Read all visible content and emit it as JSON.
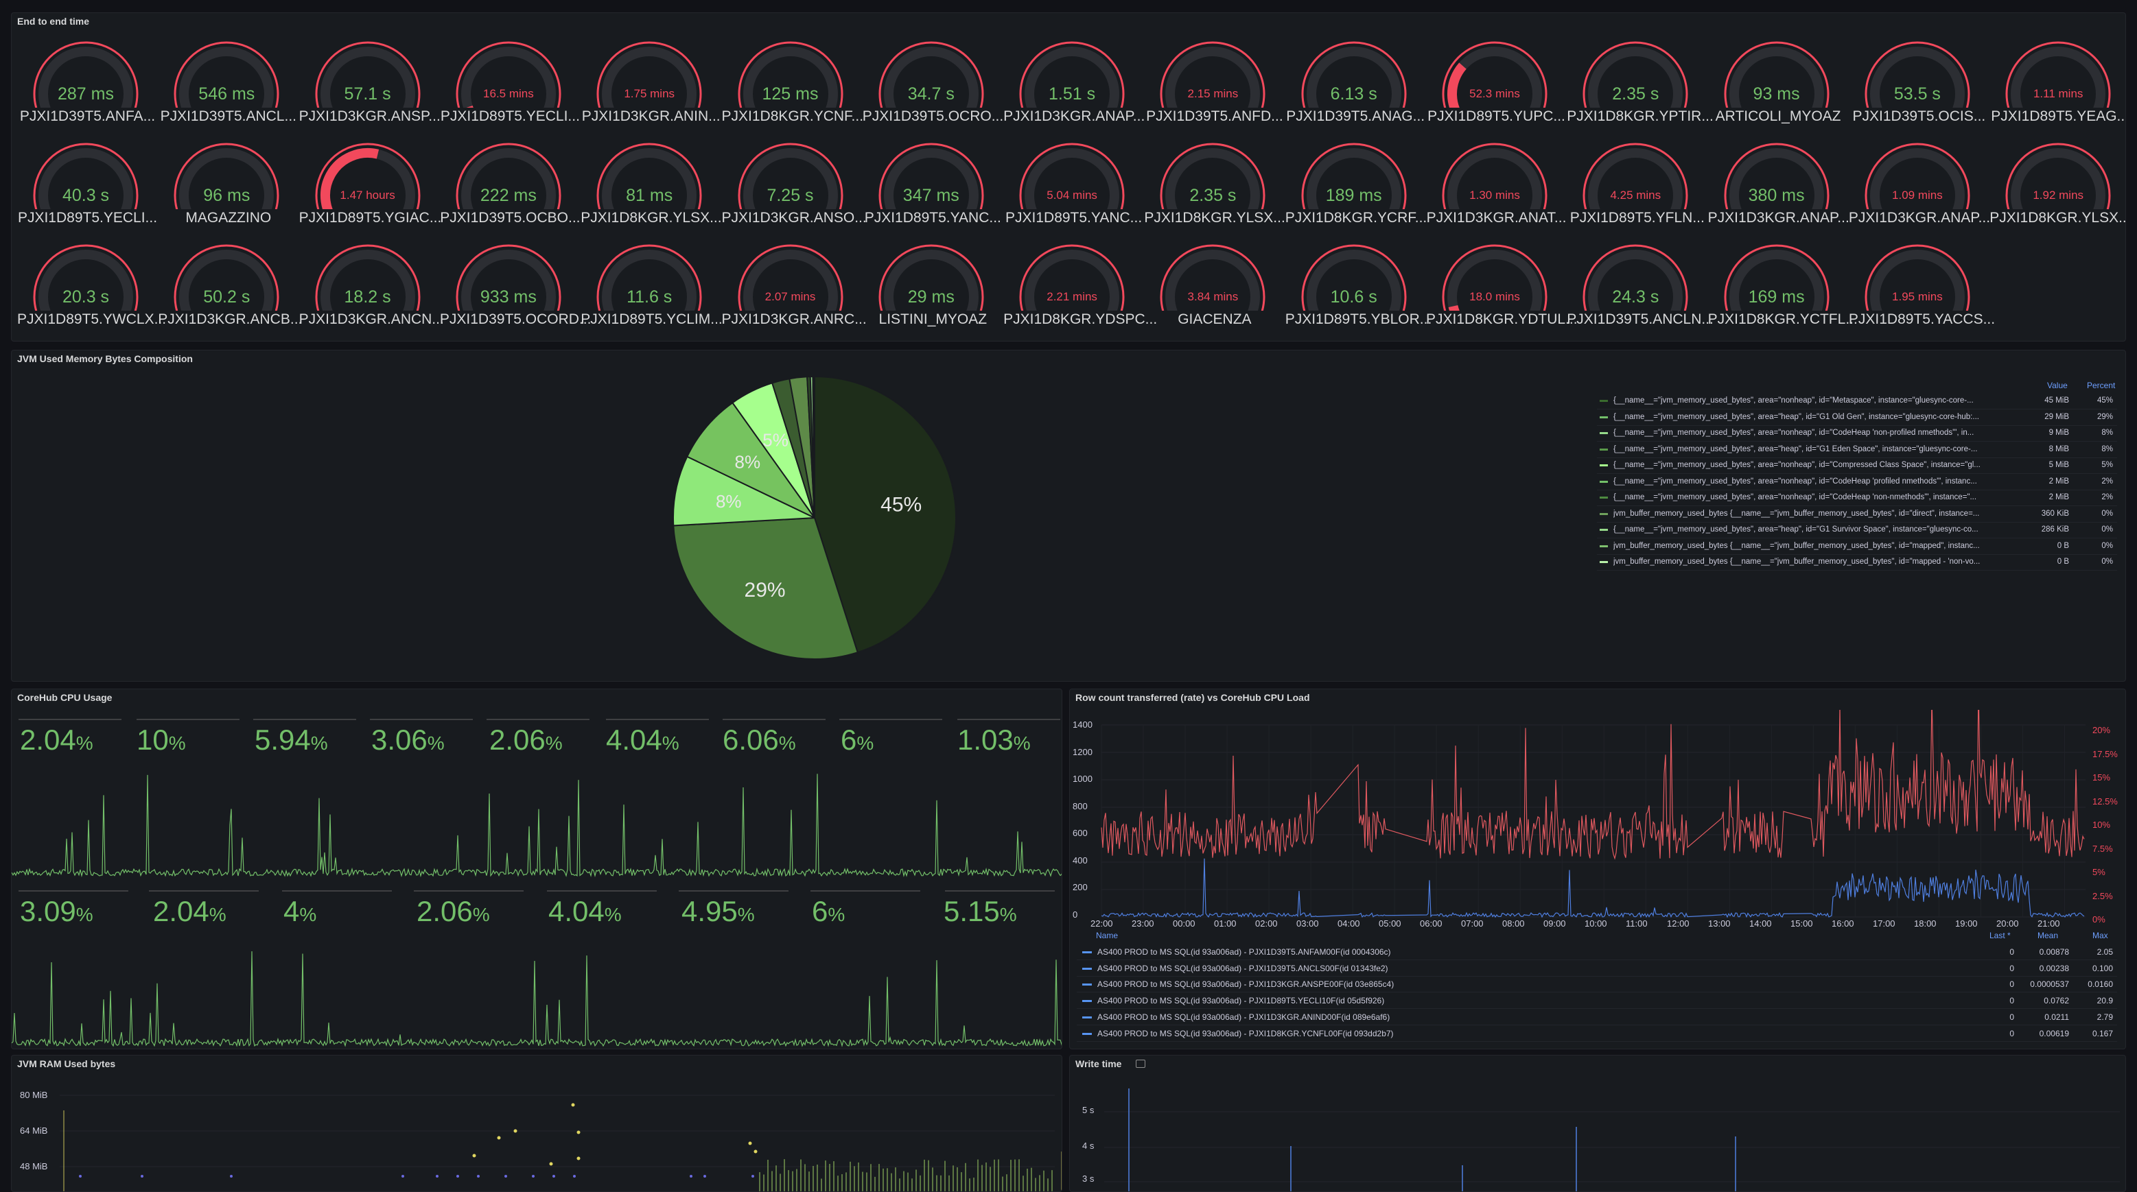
{
  "panels": {
    "e2e": {
      "title": "End to end time"
    },
    "jvm_comp": {
      "title": "JVM Used Memory Bytes Composition"
    },
    "cpu": {
      "title": "CoreHub CPU Usage"
    },
    "rowcount": {
      "title": "Row count transferred (rate) vs CoreHub CPU Load"
    },
    "ram": {
      "title": "JVM RAM Used bytes"
    },
    "write": {
      "title": "Write time"
    }
  },
  "gauges": [
    {
      "value": "287 ms",
      "name": "PJXI1D39T5.ANFA...",
      "level": "low"
    },
    {
      "value": "546 ms",
      "name": "PJXI1D39T5.ANCL...",
      "level": "low"
    },
    {
      "value": "57.1 s",
      "name": "PJXI1D3KGR.ANSP...",
      "level": "low"
    },
    {
      "value": "16.5 mins",
      "name": "PJXI1D89T5.YECLI...",
      "level": "high",
      "fill": 0.1
    },
    {
      "value": "1.75 mins",
      "name": "PJXI1D3KGR.ANIN...",
      "level": "high",
      "fill": 0.02
    },
    {
      "value": "125 ms",
      "name": "PJXI1D8KGR.YCNF...",
      "level": "low"
    },
    {
      "value": "34.7 s",
      "name": "PJXI1D39T5.OCRO...",
      "level": "low"
    },
    {
      "value": "1.51 s",
      "name": "PJXI1D3KGR.ANAP...",
      "level": "low"
    },
    {
      "value": "2.15 mins",
      "name": "PJXI1D39T5.ANFD...",
      "level": "high",
      "fill": 0.03
    },
    {
      "value": "6.13 s",
      "name": "PJXI1D39T5.ANAG...",
      "level": "low"
    },
    {
      "value": "52.3 mins",
      "name": "PJXI1D89T5.YUPC...",
      "level": "high",
      "fill": 0.32
    },
    {
      "value": "2.35 s",
      "name": "PJXI1D8KGR.YPTIR...",
      "level": "low"
    },
    {
      "value": "93 ms",
      "name": "ARTICOLI_MYOAZ",
      "level": "low"
    },
    {
      "value": "53.5 s",
      "name": "PJXI1D39T5.OCIS...",
      "level": "low"
    },
    {
      "value": "1.11 mins",
      "name": "PJXI1D89T5.YEAG...",
      "level": "high",
      "fill": 0.01
    },
    {
      "value": "40.3 s",
      "name": "PJXI1D89T5.YECLI...",
      "level": "low"
    },
    {
      "value": "96 ms",
      "name": "MAGAZZINO",
      "level": "low"
    },
    {
      "value": "1.47 hours",
      "name": "PJXI1D89T5.YGIAC...",
      "level": "high",
      "fill": 0.55
    },
    {
      "value": "222 ms",
      "name": "PJXI1D39T5.OCBO...",
      "level": "low"
    },
    {
      "value": "81 ms",
      "name": "PJXI1D8KGR.YLSX...",
      "level": "low"
    },
    {
      "value": "7.25 s",
      "name": "PJXI1D3KGR.ANSO...",
      "level": "low"
    },
    {
      "value": "347 ms",
      "name": "PJXI1D89T5.YANC...",
      "level": "low"
    },
    {
      "value": "5.04 mins",
      "name": "PJXI1D89T5.YANC...",
      "level": "high",
      "fill": 0.06
    },
    {
      "value": "2.35 s",
      "name": "PJXI1D8KGR.YLSX...",
      "level": "low"
    },
    {
      "value": "189 ms",
      "name": "PJXI1D8KGR.YCRF...",
      "level": "low"
    },
    {
      "value": "1.30 mins",
      "name": "PJXI1D3KGR.ANAT...",
      "level": "high",
      "fill": 0.01
    },
    {
      "value": "4.25 mins",
      "name": "PJXI1D89T5.YFLN...",
      "level": "high",
      "fill": 0.05
    },
    {
      "value": "380 ms",
      "name": "PJXI1D3KGR.ANAP...",
      "level": "low"
    },
    {
      "value": "1.09 mins",
      "name": "PJXI1D3KGR.ANAP...",
      "level": "high",
      "fill": 0.01
    },
    {
      "value": "1.92 mins",
      "name": "PJXI1D8KGR.YLSX...",
      "level": "high",
      "fill": 0.02
    },
    {
      "value": "20.3 s",
      "name": "PJXI1D89T5.YWCLX...",
      "level": "low"
    },
    {
      "value": "50.2 s",
      "name": "PJXI1D3KGR.ANCB...",
      "level": "low"
    },
    {
      "value": "18.2 s",
      "name": "PJXI1D3KGR.ANCN...",
      "level": "low"
    },
    {
      "value": "933 ms",
      "name": "PJXI1D39T5.OCORD...",
      "level": "low"
    },
    {
      "value": "11.6 s",
      "name": "PJXI1D89T5.YCLIM...",
      "level": "low"
    },
    {
      "value": "2.07 mins",
      "name": "PJXI1D3KGR.ANRC...",
      "level": "high",
      "fill": 0.03
    },
    {
      "value": "29 ms",
      "name": "LISTINI_MYOAZ",
      "level": "low"
    },
    {
      "value": "2.21 mins",
      "name": "PJXI1D8KGR.YDSPC...",
      "level": "high",
      "fill": 0.03
    },
    {
      "value": "3.84 mins",
      "name": "GIACENZA",
      "level": "high",
      "fill": 0.05
    },
    {
      "value": "10.6 s",
      "name": "PJXI1D89T5.YBLOR...",
      "level": "low"
    },
    {
      "value": "18.0 mins",
      "name": "PJXI1D8KGR.YDTUL...",
      "level": "high",
      "fill": 0.12
    },
    {
      "value": "24.3 s",
      "name": "PJXI1D39T5.ANCLN...",
      "level": "low"
    },
    {
      "value": "169 ms",
      "name": "PJXI1D8KGR.YCTFL...",
      "level": "low"
    },
    {
      "value": "1.95 mins",
      "name": "PJXI1D89T5.YACCS...",
      "level": "high",
      "fill": 0.02
    }
  ],
  "pie": {
    "slice_labels": [
      "45%",
      "29%",
      "8%",
      "8%",
      "5%"
    ],
    "colors": [
      "#1e2d1a",
      "#4a7a3a",
      "#8fe87a",
      "#76c35f",
      "#a6ff8d",
      "#3b5c30",
      "#5e8a48",
      "#2f4a27",
      "#96d98a",
      "#6fa15c",
      "#b7f0a8"
    ],
    "legend_header": {
      "value": "Value",
      "percent": "Percent"
    },
    "legend": [
      {
        "name": "{__name__=\"jvm_memory_used_bytes\", area=\"nonheap\", id=\"Metaspace\", instance=\"gluesync-core-...",
        "value": "45 MiB",
        "percent": "45%"
      },
      {
        "name": "{__name__=\"jvm_memory_used_bytes\", area=\"heap\", id=\"G1 Old Gen\", instance=\"gluesync-core-hub:...",
        "value": "29 MiB",
        "percent": "29%"
      },
      {
        "name": "{__name__=\"jvm_memory_used_bytes\", area=\"nonheap\", id=\"CodeHeap 'non-profiled nmethods'\", in...",
        "value": "9 MiB",
        "percent": "8%"
      },
      {
        "name": "{__name__=\"jvm_memory_used_bytes\", area=\"heap\", id=\"G1 Eden Space\", instance=\"gluesync-core-...",
        "value": "8 MiB",
        "percent": "8%"
      },
      {
        "name": "{__name__=\"jvm_memory_used_bytes\", area=\"nonheap\", id=\"Compressed Class Space\", instance=\"gl...",
        "value": "5 MiB",
        "percent": "5%"
      },
      {
        "name": "{__name__=\"jvm_memory_used_bytes\", area=\"nonheap\", id=\"CodeHeap 'profiled nmethods'\", instanc...",
        "value": "2 MiB",
        "percent": "2%"
      },
      {
        "name": "{__name__=\"jvm_memory_used_bytes\", area=\"nonheap\", id=\"CodeHeap 'non-nmethods'\", instance=\"...",
        "value": "2 MiB",
        "percent": "2%"
      },
      {
        "name": "jvm_buffer_memory_used_bytes {__name__=\"jvm_buffer_memory_used_bytes\", id=\"direct\", instance=...",
        "value": "360 KiB",
        "percent": "0%"
      },
      {
        "name": "{__name__=\"jvm_memory_used_bytes\", area=\"heap\", id=\"G1 Survivor Space\", instance=\"gluesync-co...",
        "value": "286 KiB",
        "percent": "0%"
      },
      {
        "name": "jvm_buffer_memory_used_bytes {__name__=\"jvm_buffer_memory_used_bytes\", id=\"mapped\", instanc...",
        "value": "0 B",
        "percent": "0%"
      },
      {
        "name": "jvm_buffer_memory_used_bytes {__name__=\"jvm_buffer_memory_used_bytes\", id=\"mapped - 'non-vo...",
        "value": "0 B",
        "percent": "0%"
      }
    ]
  },
  "cpu": {
    "unit": "%",
    "row1": [
      "2.04",
      "10",
      "5.94",
      "3.06",
      "2.06",
      "4.04",
      "6.06",
      "6",
      "1.03"
    ],
    "row2": [
      "3.09",
      "2.04",
      "4",
      "2.06",
      "4.04",
      "4.95",
      "6",
      "5.15"
    ]
  },
  "rowcount": {
    "y_left": [
      "1400",
      "1200",
      "1000",
      "800",
      "600",
      "400",
      "200",
      "0"
    ],
    "y_right": [
      "20%",
      "17.5%",
      "15%",
      "12.5%",
      "10%",
      "7.5%",
      "5%",
      "2.5%",
      "0%"
    ],
    "x": [
      "22:00",
      "23:00",
      "00:00",
      "01:00",
      "02:00",
      "03:00",
      "04:00",
      "05:00",
      "06:00",
      "07:00",
      "08:00",
      "09:00",
      "10:00",
      "11:00",
      "12:00",
      "13:00",
      "14:00",
      "15:00",
      "16:00",
      "17:00",
      "18:00",
      "19:00",
      "20:00",
      "21:00"
    ],
    "table_header": {
      "name": "Name",
      "last": "Last *",
      "mean": "Mean",
      "max": "Max"
    },
    "rows": [
      {
        "name": "AS400 PROD to MS SQL(id 93a006ad) - PJXI1D39T5.ANFAM00F(id 0004306c)",
        "last": "0",
        "mean": "0.00878",
        "max": "2.05"
      },
      {
        "name": "AS400 PROD to MS SQL(id 93a006ad) - PJXI1D39T5.ANCLS00F(id 01343fe2)",
        "last": "0",
        "mean": "0.00238",
        "max": "0.100"
      },
      {
        "name": "AS400 PROD to MS SQL(id 93a006ad) - PJXI1D3KGR.ANSPE00F(id 03e865c4)",
        "last": "0",
        "mean": "0.0000537",
        "max": "0.0160"
      },
      {
        "name": "AS400 PROD to MS SQL(id 93a006ad) - PJXI1D89T5.YECLI10F(id 05d5f926)",
        "last": "0",
        "mean": "0.0762",
        "max": "20.9"
      },
      {
        "name": "AS400 PROD to MS SQL(id 93a006ad) - PJXI1D3KGR.ANIND00F(id 089e6af6)",
        "last": "0",
        "mean": "0.0211",
        "max": "2.79"
      },
      {
        "name": "AS400 PROD to MS SQL(id 93a006ad) - PJXI1D8KGR.YCNFL00F(id 093dd2b7)",
        "last": "0",
        "mean": "0.00619",
        "max": "0.167"
      }
    ]
  },
  "ram": {
    "y": [
      "80 MiB",
      "64 MiB",
      "48 MiB"
    ]
  },
  "write": {
    "y": [
      "5 s",
      "4 s",
      "3 s"
    ]
  }
}
